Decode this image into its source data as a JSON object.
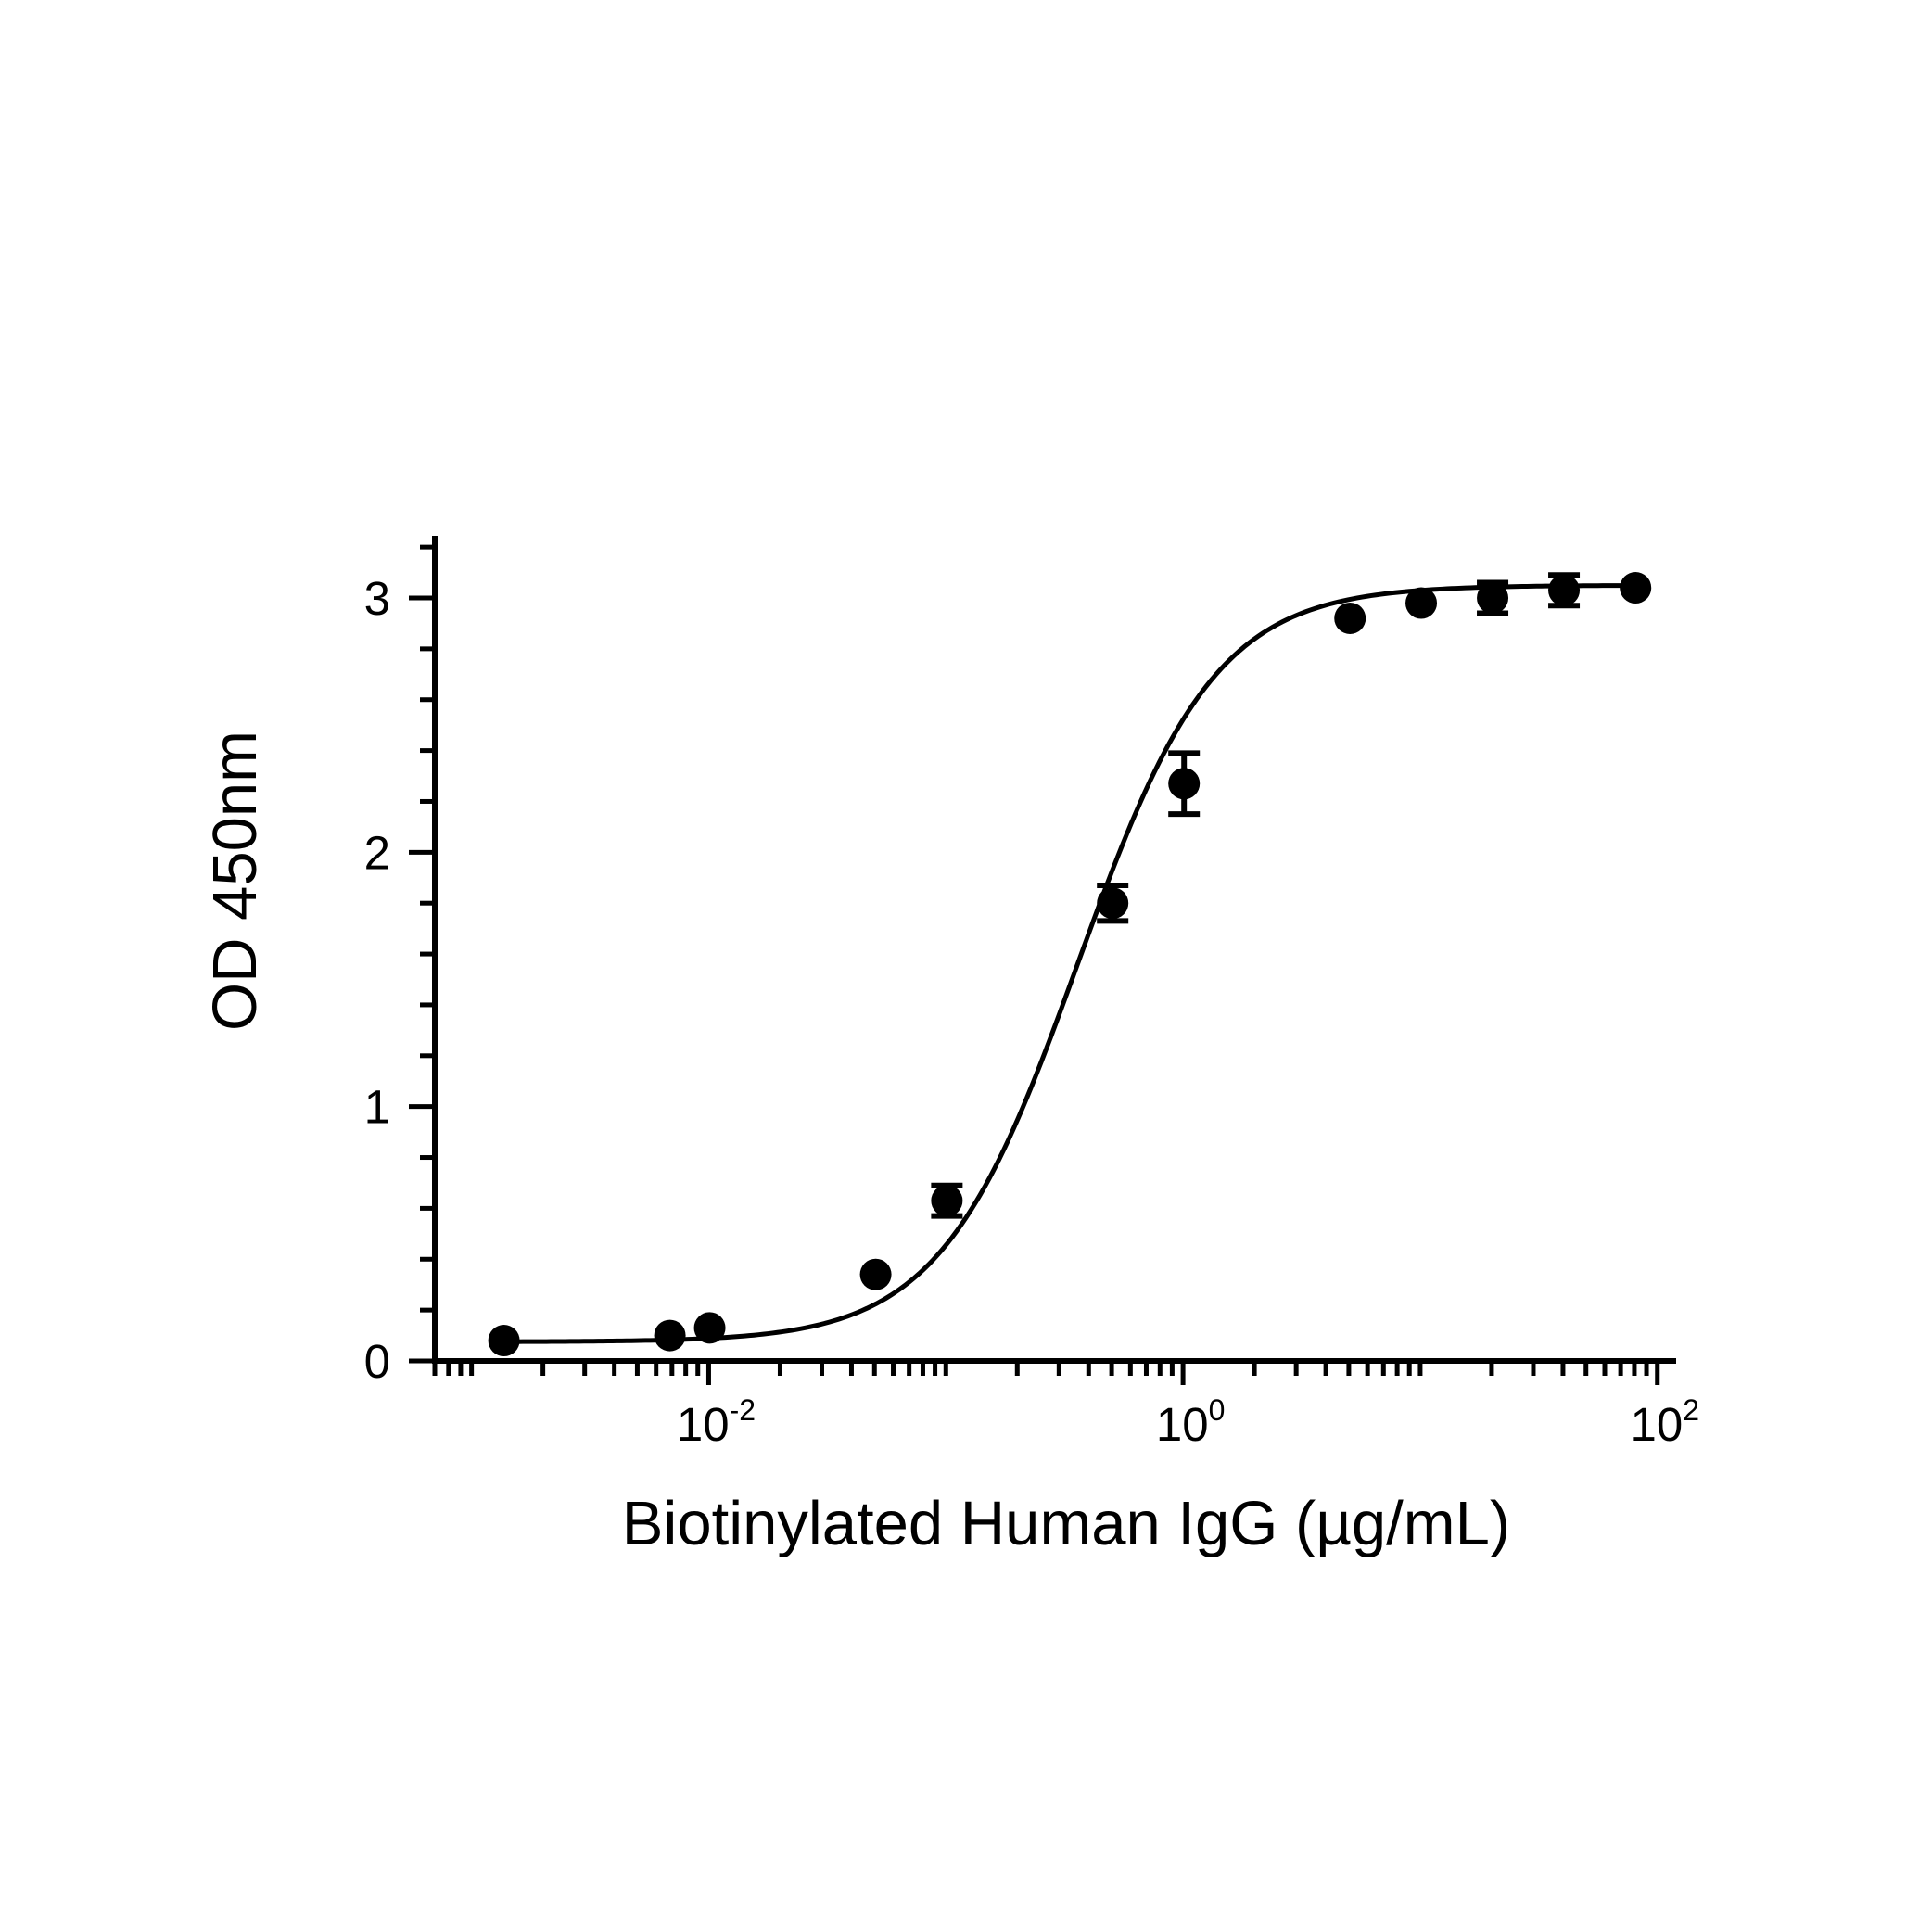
{
  "chart_data": {
    "type": "scatter",
    "title": "",
    "xlabel": "Biotinylated Human IgG (µg/mL)",
    "ylabel": "OD 450nm",
    "x_scale": "log10",
    "xlim": [
      0.0007,
      120
    ],
    "ylim": [
      0,
      3.25
    ],
    "grid": false,
    "legend": "none",
    "x_tick_labels": [
      {
        "value": 0.01,
        "base": "10",
        "exp": "-2"
      },
      {
        "value": 1,
        "base": "10",
        "exp": "0"
      },
      {
        "value": 100,
        "base": "10",
        "exp": "2"
      }
    ],
    "y_tick_labels": [
      {
        "value": 0,
        "label": "0"
      },
      {
        "value": 1,
        "label": "1"
      },
      {
        "value": 2,
        "label": "2"
      },
      {
        "value": 3,
        "label": "3"
      }
    ],
    "series": [
      {
        "marker": "filled-circle",
        "color": "#000000",
        "points": [
          {
            "x": 0.00137,
            "y": 0.08,
            "err": 0.0
          },
          {
            "x": 0.00686,
            "y": 0.1,
            "err": 0.0
          },
          {
            "x": 0.0101,
            "y": 0.13,
            "err": 0.0
          },
          {
            "x": 0.0506,
            "y": 0.34,
            "err": 0.0
          },
          {
            "x": 0.101,
            "y": 0.63,
            "err": 0.06
          },
          {
            "x": 0.505,
            "y": 1.8,
            "err": 0.07
          },
          {
            "x": 1.01,
            "y": 2.27,
            "err": 0.12
          },
          {
            "x": 5.06,
            "y": 2.92,
            "err": 0.0
          },
          {
            "x": 10.1,
            "y": 2.98,
            "err": 0.0
          },
          {
            "x": 20.2,
            "y": 3.0,
            "err": 0.06
          },
          {
            "x": 40.4,
            "y": 3.03,
            "err": 0.06
          },
          {
            "x": 80.9,
            "y": 3.04,
            "err": 0.0
          }
        ],
        "fit": {
          "model": "4PL",
          "bottom": 0.075,
          "top": 3.05,
          "ec50": 0.36,
          "hill": 1.5
        }
      }
    ]
  }
}
